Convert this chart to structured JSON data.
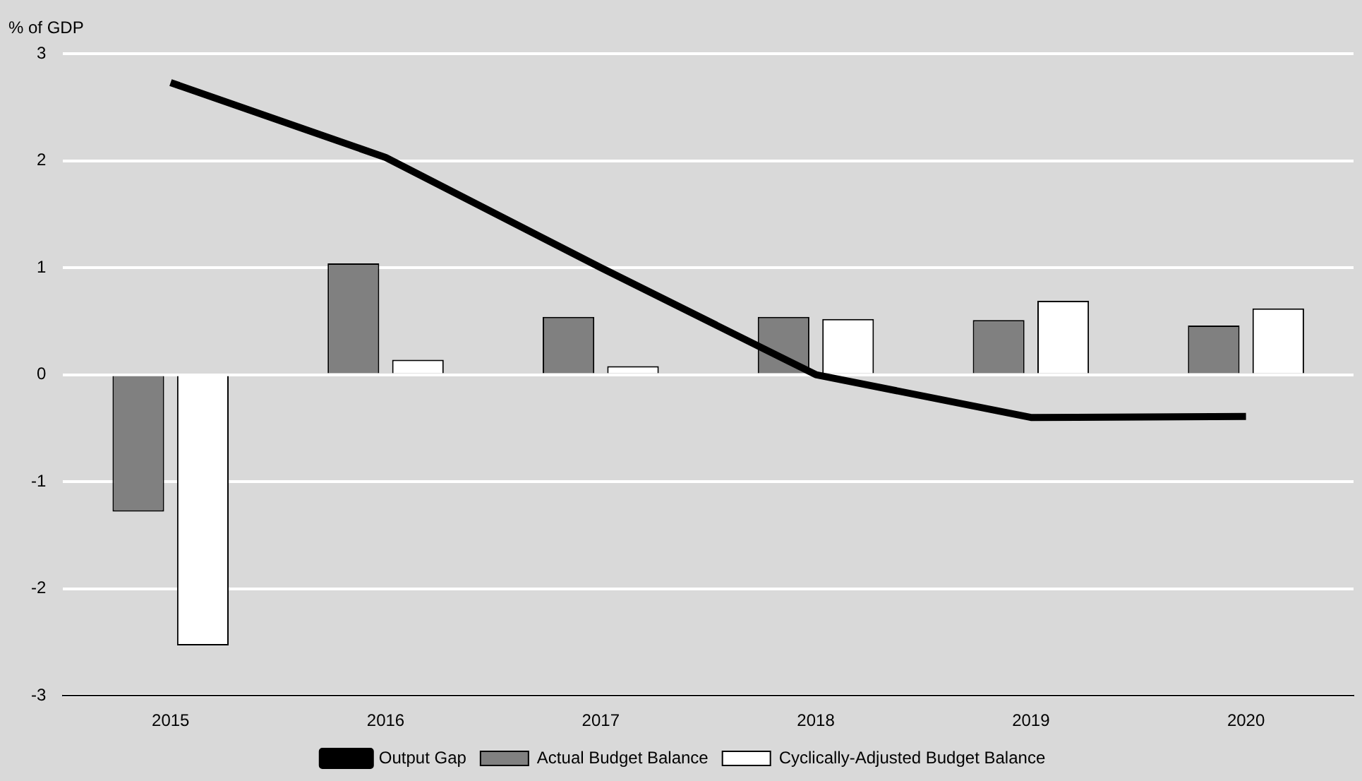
{
  "chart_data": {
    "type": "bar",
    "ylabel": "% of GDP",
    "categories": [
      "2015",
      "2016",
      "2017",
      "2018",
      "2019",
      "2020"
    ],
    "series": [
      {
        "name": "Actual Budget Balance",
        "color": "#808080",
        "values": [
          -1.28,
          1.04,
          0.54,
          0.54,
          0.51,
          0.46
        ]
      },
      {
        "name": "Cyclically-Adjusted Budget Balance",
        "color": "#ffffff",
        "values": [
          -2.53,
          0.14,
          0.08,
          0.52,
          0.69,
          0.62
        ]
      },
      {
        "name": "Output Gap",
        "type": "line",
        "color": "#000000",
        "values": [
          2.73,
          2.03,
          1.0,
          0,
          -0.4,
          -0.39
        ]
      }
    ],
    "ylim": [
      -3,
      3
    ],
    "yticks": [
      -3,
      -2,
      -1,
      0,
      1,
      2,
      3
    ],
    "grid": "y",
    "legend": "bottom"
  }
}
